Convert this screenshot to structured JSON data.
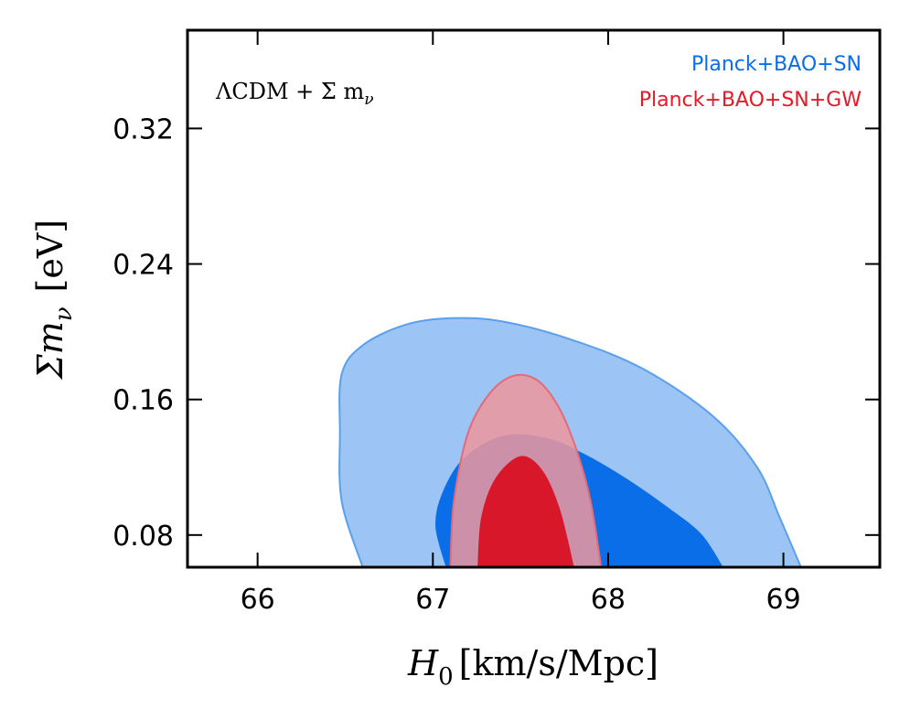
{
  "chart_data": {
    "type": "contour",
    "title": "",
    "annotation": "ΛCDM + Σ m",
    "annotation_sub": "ν",
    "xlabel": {
      "main": "H",
      "sub": "0",
      "units": "[km/s/Mpc]"
    },
    "ylabel": {
      "main": "Σm",
      "sub": "ν",
      "units": "[eV]"
    },
    "xlim": [
      65.6,
      69.55
    ],
    "ylim": [
      0.061,
      0.378
    ],
    "x_ticks": [
      66,
      67,
      68,
      69
    ],
    "x_tick_labels": [
      "66",
      "67",
      "68",
      "69"
    ],
    "y_ticks": [
      0.08,
      0.16,
      0.24,
      0.32
    ],
    "y_tick_labels": [
      "0.08",
      "0.16",
      "0.24",
      "0.32"
    ],
    "legend": {
      "placement": "top-right",
      "entries": [
        {
          "label": "Planck+BAO+SN",
          "color": "#0a6ee8"
        },
        {
          "label": "Planck+BAO+SN+GW",
          "color": "#e41a28"
        }
      ]
    },
    "series": [
      {
        "name": "Planck+BAO+SN 95%",
        "level": "95%",
        "fill": "#9cc4f4",
        "stroke": "#5aa0ec",
        "points": [
          [
            66.6,
            0.061
          ],
          [
            66.48,
            0.1
          ],
          [
            66.47,
            0.14
          ],
          [
            66.48,
            0.175
          ],
          [
            66.6,
            0.192
          ],
          [
            66.84,
            0.204
          ],
          [
            67.1,
            0.208
          ],
          [
            67.4,
            0.206
          ],
          [
            67.8,
            0.195
          ],
          [
            68.2,
            0.178
          ],
          [
            68.6,
            0.15
          ],
          [
            68.85,
            0.12
          ],
          [
            68.98,
            0.09
          ],
          [
            69.1,
            0.061
          ]
        ]
      },
      {
        "name": "Planck+BAO+SN 68%",
        "level": "68%",
        "fill": "#0a6ee8",
        "stroke": "#0a6ee8",
        "points": [
          [
            67.08,
            0.061
          ],
          [
            67.02,
            0.085
          ],
          [
            67.06,
            0.105
          ],
          [
            67.18,
            0.125
          ],
          [
            67.4,
            0.138
          ],
          [
            67.64,
            0.137
          ],
          [
            67.85,
            0.128
          ],
          [
            68.1,
            0.113
          ],
          [
            68.35,
            0.095
          ],
          [
            68.53,
            0.08
          ],
          [
            68.65,
            0.061
          ]
        ]
      },
      {
        "name": "Planck+BAO+SN+GW 95%",
        "level": "95%",
        "fill": "rgba(239,150,158,0.85)",
        "stroke": "#e56a78",
        "points": [
          [
            67.1,
            0.061
          ],
          [
            67.12,
            0.1
          ],
          [
            67.2,
            0.14
          ],
          [
            67.32,
            0.163
          ],
          [
            67.46,
            0.174
          ],
          [
            67.6,
            0.171
          ],
          [
            67.72,
            0.155
          ],
          [
            67.82,
            0.13
          ],
          [
            67.9,
            0.1
          ],
          [
            67.96,
            0.061
          ]
        ]
      },
      {
        "name": "Planck+BAO+SN+GW 68%",
        "level": "68%",
        "fill": "#d9172b",
        "stroke": "#d9172b",
        "points": [
          [
            67.26,
            0.061
          ],
          [
            67.28,
            0.09
          ],
          [
            67.36,
            0.113
          ],
          [
            67.5,
            0.126
          ],
          [
            67.62,
            0.118
          ],
          [
            67.72,
            0.095
          ],
          [
            67.8,
            0.061
          ]
        ]
      }
    ]
  }
}
